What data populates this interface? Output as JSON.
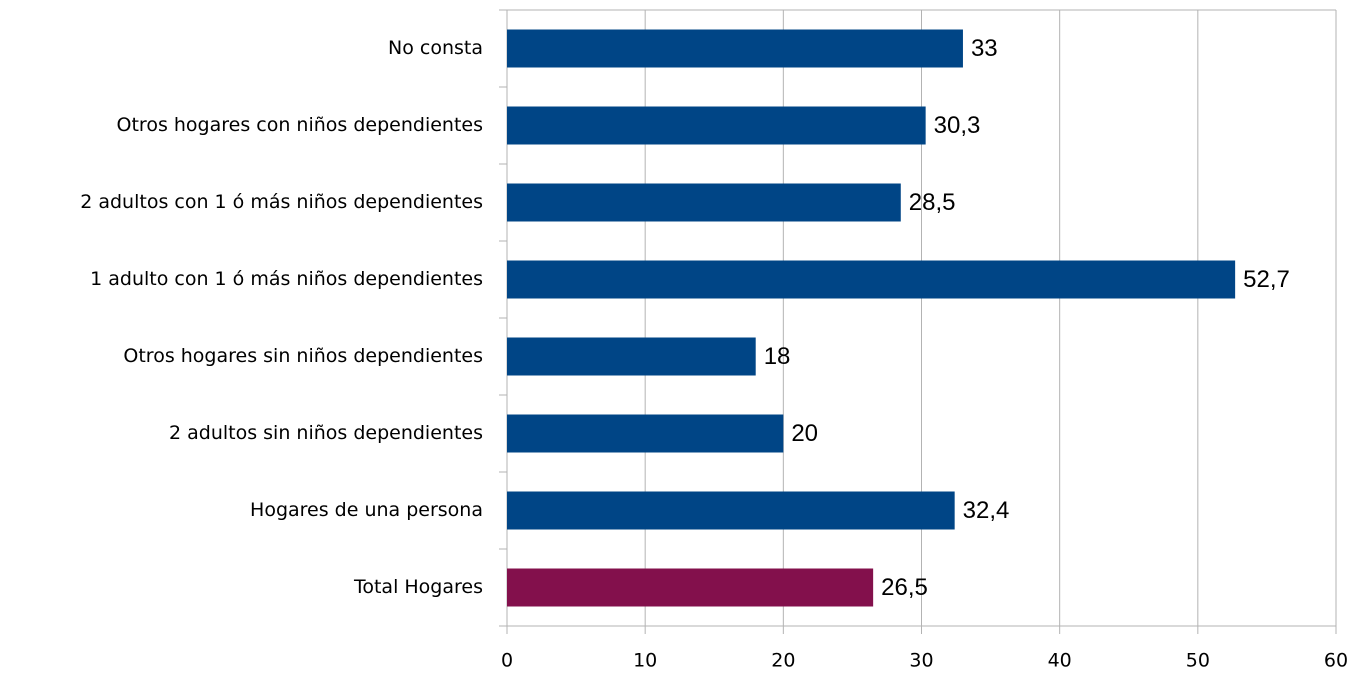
{
  "chart_data": {
    "type": "barh",
    "categories": [
      "No consta",
      "Otros hogares con niños dependientes",
      "2 adultos con 1 ó más niños dependientes",
      "1 adulto con 1 ó más niños dependientes",
      "Otros hogares sin niños dependientes",
      "2 adultos sin niños dependientes",
      "Hogares de una persona",
      "Total Hogares"
    ],
    "values": [
      33,
      30.3,
      28.5,
      52.7,
      18,
      20,
      32.4,
      26.5
    ],
    "value_labels": [
      "33",
      "30,3",
      "28,5",
      "52,7",
      "18",
      "20",
      "32,4",
      "26,5"
    ],
    "colors": [
      "#004586",
      "#004586",
      "#004586",
      "#004586",
      "#004586",
      "#004586",
      "#004586",
      "#83104c"
    ],
    "xlim": [
      0,
      60
    ],
    "xticks": [
      0,
      10,
      20,
      30,
      40,
      50,
      60
    ],
    "grid": true
  }
}
